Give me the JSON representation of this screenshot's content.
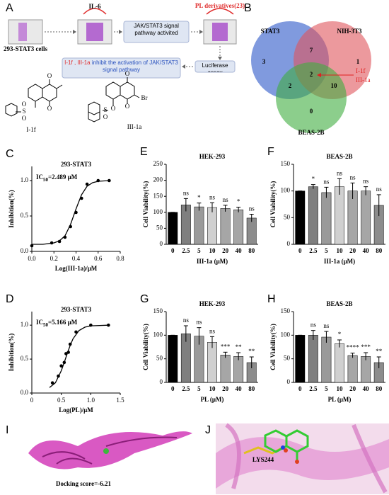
{
  "panel_a": {
    "label": "A",
    "il6": "IL-6",
    "pl_derivatives": "PL derivatives(23)",
    "cells": "293-STAT3 cells",
    "pathway": "JAK/STAT3 signal pathway activited",
    "luciferase": "Luciferase assay",
    "result_highlight": "I-1f , III-1a",
    "result_text": "inhibit the activation of JAK/STAT3 signal  pathway",
    "molecule_1": {
      "name": "I-1f",
      "atoms": [
        "O",
        "O",
        "S",
        "O",
        "O"
      ]
    },
    "molecule_2": {
      "name": "III-1a",
      "atoms": [
        "O",
        "O",
        "Br",
        "O",
        "S",
        "O"
      ]
    }
  },
  "venn": {
    "label": "B",
    "sets": [
      "STAT3",
      "NIH-3T3",
      "BEAS-2B"
    ],
    "regions": [
      {
        "count": "3"
      },
      {
        "count": "7"
      },
      {
        "count": "1"
      },
      {
        "count": "2"
      },
      {
        "count": "2"
      },
      {
        "count": "10"
      },
      {
        "count": "0"
      }
    ],
    "callout": [
      "I-1f",
      "III-1a"
    ]
  },
  "chart_data": [
    {
      "type": "scatter",
      "panel_label": "C",
      "title": "293-STAT3",
      "annotation": {
        "main": "IC",
        "sub": "50",
        "rest": "=2.489 μM"
      },
      "xlabel": "Log(III-1a)/μM",
      "ylabel": "Inhibition(%)",
      "x": [
        0,
        0.18,
        0.25,
        0.3,
        0.35,
        0.4,
        0.45,
        0.5,
        0.6,
        0.7
      ],
      "values": [
        0.08,
        0.12,
        0.14,
        0.2,
        0.35,
        0.55,
        0.75,
        0.95,
        1.0,
        1.0
      ],
      "fit": {
        "x": [
          0,
          0.1,
          0.2,
          0.25,
          0.3,
          0.35,
          0.4,
          0.45,
          0.5,
          0.55,
          0.6,
          0.7
        ],
        "values": [
          0.1,
          0.1,
          0.12,
          0.15,
          0.22,
          0.38,
          0.6,
          0.8,
          0.92,
          0.97,
          0.99,
          1.0
        ]
      },
      "xlim": [
        0,
        0.8
      ],
      "xticks": [
        {
          "value": 0,
          "label": "0.0"
        },
        0.2,
        0.4,
        0.6,
        0.8
      ],
      "ylim": [
        0,
        1.2
      ],
      "yticks": [
        {
          "value": 0,
          "label": "0.0"
        },
        0.5,
        {
          "value": 1,
          "label": "1.0"
        }
      ],
      "color": "#000000"
    },
    {
      "type": "bar",
      "panel_label": "E",
      "title": "HEK-293",
      "xlabel": "III-1a  (μM)",
      "ylabel": "Cell Viability(%)",
      "categories": [
        "0",
        "2.5",
        "5",
        "10",
        "20",
        "40",
        "80"
      ],
      "values": [
        100,
        123,
        117,
        115,
        112,
        108,
        82
      ],
      "errors": [
        0,
        20,
        12,
        15,
        10,
        8,
        12
      ],
      "annotations": [
        null,
        "ns",
        "*",
        "ns",
        "ns",
        "*",
        "ns"
      ],
      "colors": [
        "#000000",
        "#7f7f7f",
        "#9a9a9a",
        "#d0d0d0",
        "#a6a6a6",
        "#a6a6a6",
        "#8c8c8c"
      ],
      "ylim": [
        0,
        250
      ],
      "yticks": [
        0,
        50,
        100,
        150,
        200,
        250
      ]
    },
    {
      "type": "bar",
      "panel_label": "F",
      "title": "BEAS-2B",
      "xlabel": "III-1a  (μM)",
      "ylabel": "Cell Viability(%)",
      "categories": [
        "0",
        "2.5",
        "5",
        "10",
        "20",
        "40",
        "80"
      ],
      "values": [
        100,
        108,
        97,
        108,
        100,
        100,
        73
      ],
      "errors": [
        0,
        4,
        10,
        15,
        15,
        8,
        20
      ],
      "annotations": [
        null,
        "*",
        "ns",
        "ns",
        "ns",
        "ns",
        "ns"
      ],
      "colors": [
        "#000000",
        "#7f7f7f",
        "#9a9a9a",
        "#d0d0d0",
        "#a6a6a6",
        "#a6a6a6",
        "#8c8c8c"
      ],
      "ylim": [
        0,
        150
      ],
      "yticks": [
        0,
        50,
        100,
        150
      ]
    },
    {
      "type": "scatter",
      "panel_label": "D",
      "title": "293-STAT3",
      "annotation": {
        "main": "IC",
        "sub": "50",
        "rest": "=5.166 μM"
      },
      "xlabel": "Log(PL)/μM",
      "ylabel": "Inhibition(%)",
      "x": [
        0.35,
        0.45,
        0.5,
        0.55,
        0.58,
        0.62,
        0.65,
        0.75,
        1.0,
        1.3
      ],
      "values": [
        0.15,
        0.25,
        0.4,
        0.45,
        0.58,
        0.6,
        0.72,
        0.9,
        1.0,
        1.0
      ],
      "fit": {
        "x": [
          0.3,
          0.4,
          0.5,
          0.55,
          0.6,
          0.65,
          0.7,
          0.8,
          0.9,
          1.0,
          1.3
        ],
        "values": [
          0.08,
          0.15,
          0.33,
          0.45,
          0.58,
          0.7,
          0.8,
          0.92,
          0.97,
          0.99,
          1.0
        ]
      },
      "xlim": [
        0,
        1.5
      ],
      "xticks": [
        0,
        0.5,
        {
          "value": 1,
          "label": "1.0"
        },
        1.5
      ],
      "ylim": [
        0,
        1.2
      ],
      "yticks": [
        {
          "value": 0,
          "label": "0.0"
        },
        0.5,
        {
          "value": 1,
          "label": "1.0"
        }
      ],
      "color": "#000000"
    },
    {
      "type": "bar",
      "panel_label": "G",
      "title": "HEK-293",
      "xlabel": "PL  (μM)",
      "ylabel": "Cell Viability(%)",
      "categories": [
        "0",
        "2.5",
        "5",
        "10",
        "20",
        "40",
        "80"
      ],
      "values": [
        100,
        103,
        98,
        85,
        58,
        55,
        42
      ],
      "errors": [
        0,
        17,
        18,
        12,
        6,
        8,
        12
      ],
      "annotations": [
        null,
        "ns",
        "ns",
        "ns",
        "***",
        "**",
        "**"
      ],
      "colors": [
        "#000000",
        "#7f7f7f",
        "#9a9a9a",
        "#d0d0d0",
        "#a6a6a6",
        "#a6a6a6",
        "#8c8c8c"
      ],
      "ylim": [
        0,
        150
      ],
      "yticks": [
        0,
        50,
        100,
        150
      ]
    },
    {
      "type": "bar",
      "panel_label": "H",
      "title": "BEAS-2B",
      "xlabel": "PL  (μM)",
      "ylabel": "Cell Viability(%)",
      "categories": [
        "0",
        "2.5",
        "5",
        "10",
        "20",
        "40",
        "80"
      ],
      "values": [
        100,
        100,
        96,
        82,
        57,
        55,
        42
      ],
      "errors": [
        0,
        10,
        12,
        8,
        5,
        8,
        12
      ],
      "annotations": [
        null,
        "ns",
        "ns",
        "*",
        "****",
        "***",
        "**"
      ],
      "colors": [
        "#000000",
        "#7f7f7f",
        "#9a9a9a",
        "#d0d0d0",
        "#a6a6a6",
        "#a6a6a6",
        "#8c8c8c"
      ],
      "ylim": [
        0,
        150
      ],
      "yticks": [
        0,
        50,
        100,
        150
      ]
    }
  ],
  "panel_i": {
    "label": "I",
    "score": "Docking score=-6.21"
  },
  "panel_j": {
    "label": "J",
    "residue": "LYS244"
  }
}
